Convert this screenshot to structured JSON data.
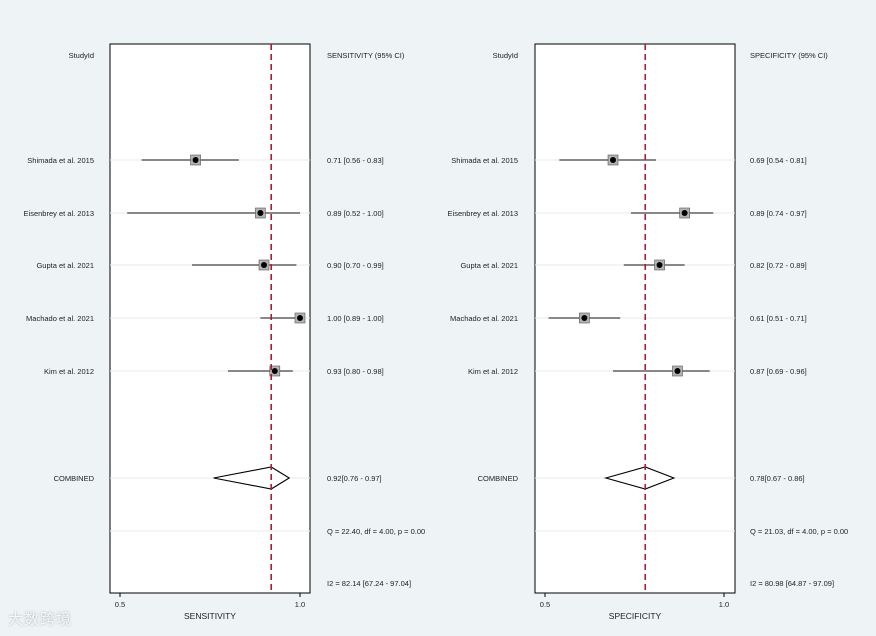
{
  "watermark": "大数跨境",
  "chart_data": [
    {
      "type": "forest",
      "id": "sensitivity",
      "header_left": "StudyId",
      "header_right": "SENSITIVITY (95% CI)",
      "xlabel": "SENSITIVITY",
      "xlim": [
        0.5,
        1.0
      ],
      "ticks": [
        "0.5",
        "1.0"
      ],
      "pooled_line": 0.92,
      "studies": [
        {
          "label": "Shimada et al. 2015",
          "est": 0.71,
          "lo": 0.56,
          "hi": 0.83,
          "ci_text": "0.71 [0.56 - 0.83]"
        },
        {
          "label": "Eisenbrey et al. 2013",
          "est": 0.89,
          "lo": 0.52,
          "hi": 1.0,
          "ci_text": "0.89 [0.52 - 1.00]"
        },
        {
          "label": "Gupta et al. 2021",
          "est": 0.9,
          "lo": 0.7,
          "hi": 0.99,
          "ci_text": "0.90 [0.70 - 0.99]"
        },
        {
          "label": "Machado et al. 2021",
          "est": 1.0,
          "lo": 0.89,
          "hi": 1.0,
          "ci_text": "1.00 [0.89 - 1.00]"
        },
        {
          "label": "Kim et al. 2012",
          "est": 0.93,
          "lo": 0.8,
          "hi": 0.98,
          "ci_text": "0.93 [0.80 - 0.98]"
        }
      ],
      "combined": {
        "label": "COMBINED",
        "est": 0.92,
        "lo": 0.76,
        "hi": 0.97,
        "ci_text": "0.92[0.76 - 0.97]"
      },
      "q_text": "Q = 22.40, df = 4.00, p =  0.00",
      "i2_text": "I2 = 82.14 [67.24 - 97.04]"
    },
    {
      "type": "forest",
      "id": "specificity",
      "header_left": "StudyId",
      "header_right": "SPECIFICITY (95% CI)",
      "xlabel": "SPECIFICITY",
      "xlim": [
        0.5,
        1.0
      ],
      "ticks": [
        "0.5",
        "1.0"
      ],
      "pooled_line": 0.78,
      "studies": [
        {
          "label": "Shimada et al. 2015",
          "est": 0.69,
          "lo": 0.54,
          "hi": 0.81,
          "ci_text": "0.69 [0.54 - 0.81]"
        },
        {
          "label": "Eisenbrey et al. 2013",
          "est": 0.89,
          "lo": 0.74,
          "hi": 0.97,
          "ci_text": "0.89 [0.74 - 0.97]"
        },
        {
          "label": "Gupta et al. 2021",
          "est": 0.82,
          "lo": 0.72,
          "hi": 0.89,
          "ci_text": "0.82 [0.72 - 0.89]"
        },
        {
          "label": "Machado et al. 2021",
          "est": 0.61,
          "lo": 0.51,
          "hi": 0.71,
          "ci_text": "0.61 [0.51 - 0.71]"
        },
        {
          "label": "Kim et al. 2012",
          "est": 0.87,
          "lo": 0.69,
          "hi": 0.96,
          "ci_text": "0.87 [0.69 - 0.96]"
        }
      ],
      "combined": {
        "label": "COMBINED",
        "est": 0.78,
        "lo": 0.67,
        "hi": 0.86,
        "ci_text": "0.78[0.67 - 0.86]"
      },
      "q_text": "Q = 21.03, df = 4.00, p =  0.00",
      "i2_text": "I2 = 80.98 [64.87 - 97.09]"
    }
  ]
}
